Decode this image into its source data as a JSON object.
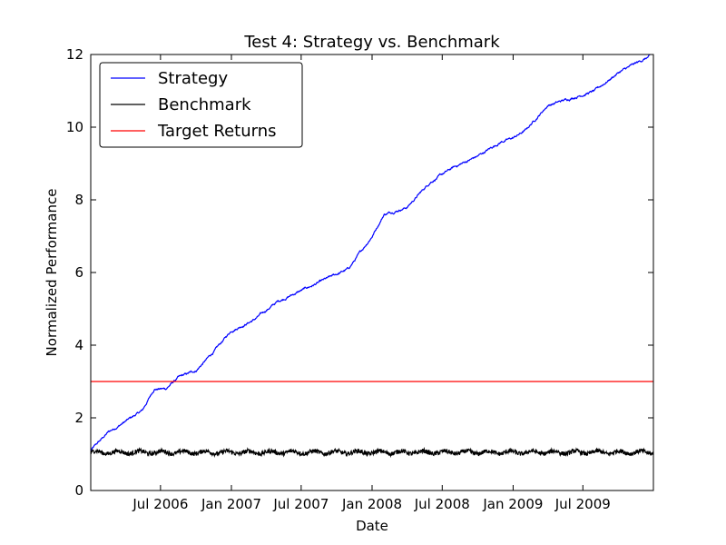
{
  "chart_data": {
    "type": "line",
    "title": "Test 4: Strategy vs. Benchmark",
    "xlabel": "Date",
    "ylabel": "Normalized Performance",
    "xlim": [
      "2006-01-01",
      "2009-12-31"
    ],
    "ylim": [
      0,
      12
    ],
    "x_ticks": [
      "2006-07-01",
      "2007-01-01",
      "2007-07-01",
      "2008-01-01",
      "2008-07-01",
      "2009-01-01",
      "2009-07-01"
    ],
    "x_tick_labels": [
      "Jul 2006",
      "Jan 2007",
      "Jul 2007",
      "Jan 2008",
      "Jul 2008",
      "Jan 2009",
      "Jul 2009"
    ],
    "y_ticks": [
      0,
      2,
      4,
      6,
      8,
      10,
      12
    ],
    "y_tick_labels": [
      "0",
      "2",
      "4",
      "6",
      "8",
      "10",
      "12"
    ],
    "legend_position": "top-left",
    "grid": false,
    "series": [
      {
        "name": "Strategy",
        "color": "#0000ff",
        "x": [
          "2006-01-01",
          "2006-02-15",
          "2006-04-01",
          "2006-05-15",
          "2006-06-15",
          "2006-07-15",
          "2006-08-15",
          "2006-10-01",
          "2006-11-15",
          "2007-01-01",
          "2007-03-01",
          "2007-05-01",
          "2007-07-01",
          "2007-09-01",
          "2007-11-01",
          "2008-01-01",
          "2008-02-01",
          "2008-04-01",
          "2008-06-01",
          "2008-08-01",
          "2008-10-01",
          "2008-12-01",
          "2009-01-01",
          "2009-02-01",
          "2009-04-01",
          "2009-06-01",
          "2009-08-01",
          "2009-10-01",
          "2009-12-31"
        ],
        "values": [
          1.1,
          1.6,
          1.9,
          2.2,
          2.8,
          2.8,
          3.1,
          3.3,
          3.8,
          4.4,
          4.7,
          5.2,
          5.5,
          5.8,
          6.1,
          7.0,
          7.6,
          7.8,
          8.5,
          8.9,
          9.2,
          9.6,
          9.7,
          9.9,
          10.6,
          10.8,
          11.0,
          11.5,
          12.0
        ]
      },
      {
        "name": "Benchmark",
        "color": "#000000",
        "x": [
          "2006-01-01",
          "2009-12-31"
        ],
        "values": [
          1.05,
          1.05
        ]
      },
      {
        "name": "Target Returns",
        "color": "#ff0000",
        "x": [
          "2006-01-01",
          "2009-12-31"
        ],
        "values": [
          3.0,
          3.0
        ]
      }
    ]
  }
}
